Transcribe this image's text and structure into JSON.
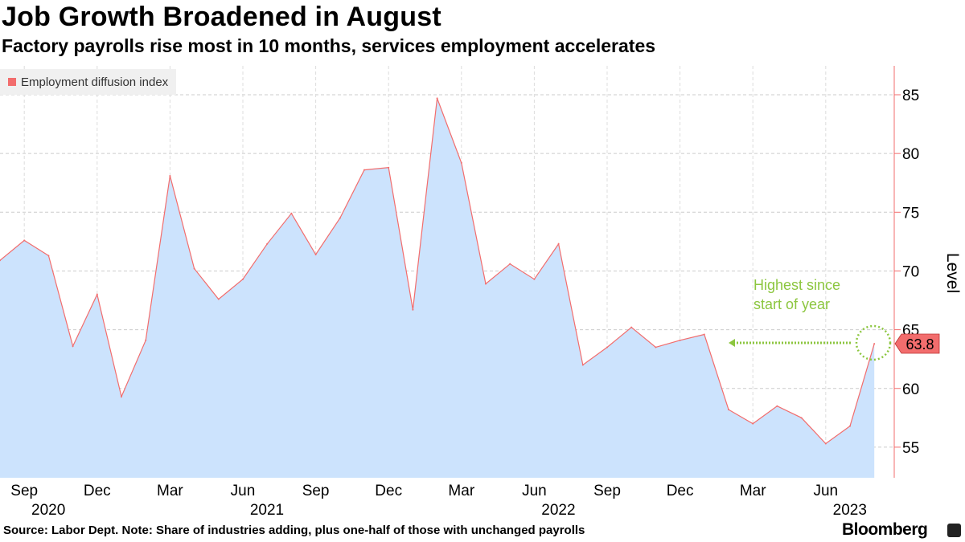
{
  "header": {
    "title": "Job Growth Broadened in August",
    "subtitle": "Factory payrolls rise most in 10 months, services employment accelerates"
  },
  "footer": {
    "source": "Source: Labor Dept. Note: Share of industries adding, plus one-half of those with unchanged payrolls",
    "brand": "Bloomberg"
  },
  "colors": {
    "line": "#f26d6d",
    "fill": "#cce3fd",
    "annotation": "#8cc63f",
    "grid": "#cccccc"
  },
  "chart_data": {
    "type": "area",
    "title": "Job Growth Broadened in August",
    "legend": [
      "Employment diffusion index"
    ],
    "legend_placement": "top-left",
    "ylabel": "Level",
    "ylim": [
      52.5,
      87.5
    ],
    "yticks": [
      55,
      60,
      65,
      70,
      75,
      80,
      85
    ],
    "x_start": "2020-08",
    "xtick_labels": [
      {
        "month_index": 1,
        "label": "Sep",
        "year": "2020"
      },
      {
        "month_index": 4,
        "label": "Dec",
        "year": ""
      },
      {
        "month_index": 7,
        "label": "Mar",
        "year": ""
      },
      {
        "month_index": 10,
        "label": "Jun",
        "year": "2021"
      },
      {
        "month_index": 13,
        "label": "Sep",
        "year": ""
      },
      {
        "month_index": 16,
        "label": "Dec",
        "year": ""
      },
      {
        "month_index": 19,
        "label": "Mar",
        "year": ""
      },
      {
        "month_index": 22,
        "label": "Jun",
        "year": "2022"
      },
      {
        "month_index": 25,
        "label": "Sep",
        "year": ""
      },
      {
        "month_index": 28,
        "label": "Dec",
        "year": ""
      },
      {
        "month_index": 31,
        "label": "Mar",
        "year": ""
      },
      {
        "month_index": 34,
        "label": "Jun",
        "year": "2023"
      }
    ],
    "series": [
      {
        "name": "Employment diffusion index",
        "values": [
          70.9,
          72.6,
          71.3,
          63.6,
          68.0,
          59.3,
          64.1,
          78.1,
          70.2,
          67.6,
          69.3,
          72.3,
          74.9,
          71.4,
          74.5,
          78.6,
          78.8,
          66.7,
          84.7,
          79.2,
          68.9,
          70.6,
          69.3,
          72.3,
          62.0,
          63.5,
          65.2,
          63.5,
          64.1,
          64.6,
          58.2,
          57.0,
          58.5,
          57.5,
          55.3,
          56.8,
          63.8
        ]
      }
    ],
    "last_value_label": "63.8",
    "annotation": {
      "line1": "Highest since",
      "line2": "start of year"
    },
    "grid": true
  }
}
